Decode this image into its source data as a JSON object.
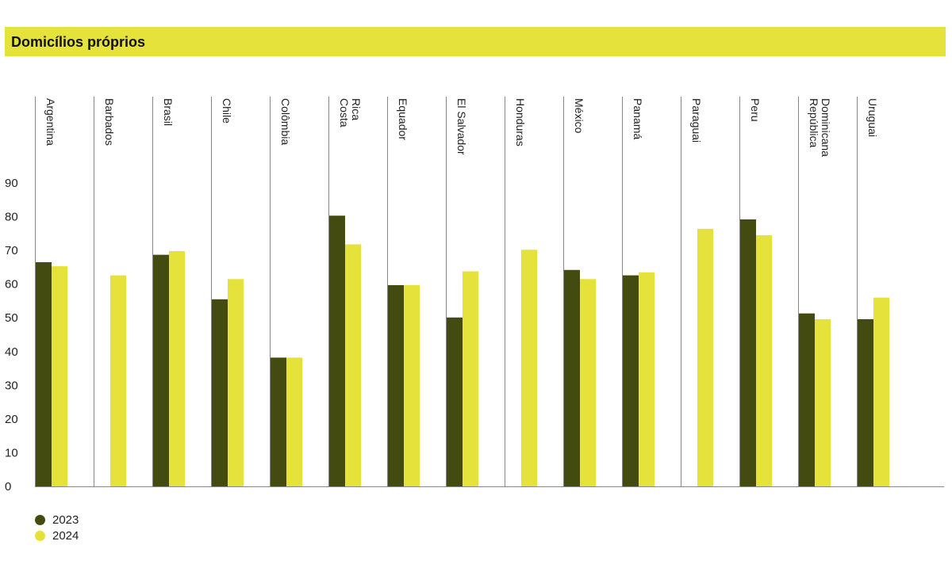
{
  "chart_data": {
    "type": "bar",
    "title": "Domicílios próprios",
    "categories": [
      "Argentina",
      "Barbados",
      "Brasil",
      "Chile",
      "Colômbia",
      "Costa Rica",
      "Equador",
      "El Salvador",
      "Honduras",
      "México",
      "Panamá",
      "Paraguai",
      "Peru",
      "República Dominicana",
      "Uruguai"
    ],
    "category_lines": [
      [
        "Argentina"
      ],
      [
        "Barbados"
      ],
      [
        "Brasil"
      ],
      [
        "Chile"
      ],
      [
        "Colômbia"
      ],
      [
        "Costa",
        "Rica"
      ],
      [
        "Equador"
      ],
      [
        "El Salvador"
      ],
      [
        "Honduras"
      ],
      [
        "México"
      ],
      [
        "Panamá"
      ],
      [
        "Paraguai"
      ],
      [
        "Peru"
      ],
      [
        "República",
        "Dominicana"
      ],
      [
        "Uruguai"
      ]
    ],
    "series": [
      {
        "name": "2023",
        "color": "#434b10",
        "values": [
          66.5,
          null,
          68.7,
          55.5,
          38.2,
          80.3,
          59.7,
          50.1,
          null,
          64.2,
          62.6,
          null,
          79.2,
          51.3,
          49.6
        ]
      },
      {
        "name": "2024",
        "color": "#e6e23c",
        "values": [
          65.3,
          62.6,
          69.8,
          61.5,
          38.2,
          71.8,
          59.7,
          63.8,
          70.2,
          61.5,
          63.5,
          76.4,
          74.5,
          49.6,
          56.0
        ]
      }
    ],
    "yticks": [
      "0",
      "10",
      "20",
      "30",
      "40",
      "50",
      "60",
      "70",
      "80",
      "90"
    ],
    "ylim": [
      0,
      90
    ],
    "xlabel": "",
    "ylabel": "",
    "legend_position": "bottom-left"
  }
}
